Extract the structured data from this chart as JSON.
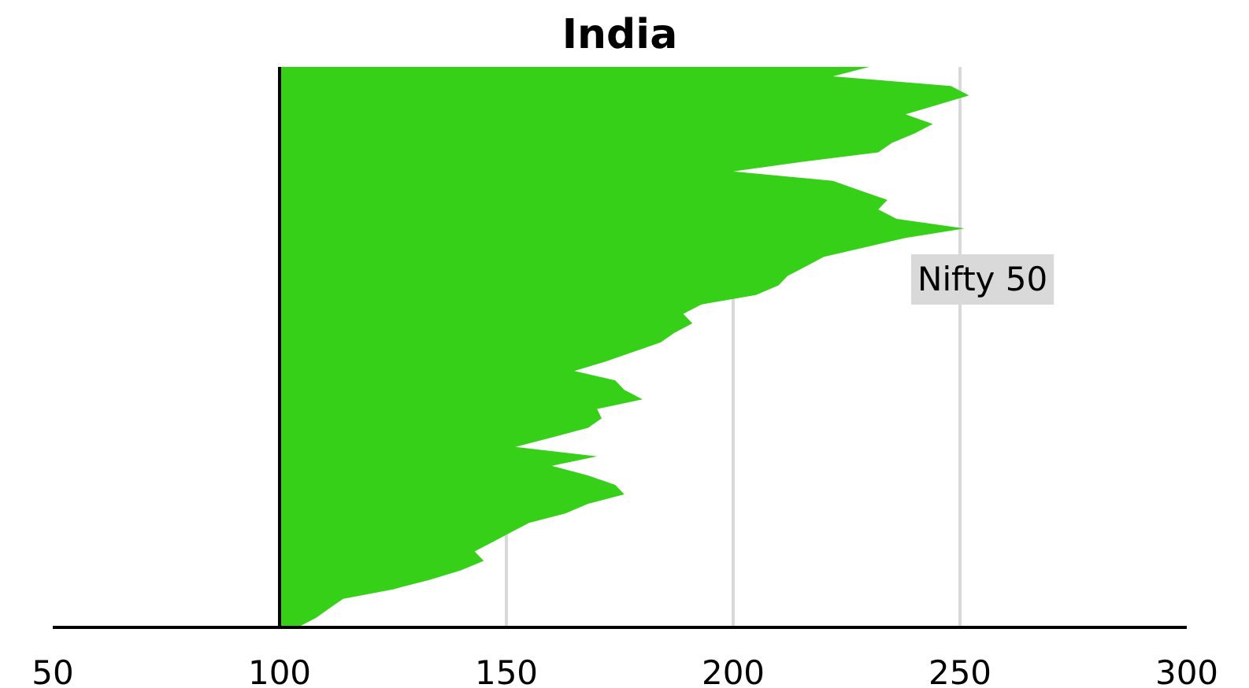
{
  "chart_data": {
    "type": "area",
    "orientation": "horizontal",
    "title": "India",
    "categories": [
      null,
      null,
      null,
      null,
      null,
      null,
      null,
      null,
      null,
      null,
      null,
      null,
      null,
      null,
      null,
      null,
      null,
      null,
      null,
      null,
      null,
      null,
      null,
      null,
      null,
      null,
      null,
      null,
      null,
      null,
      null,
      null,
      null,
      null,
      null,
      null,
      null,
      null,
      null,
      null,
      null,
      null,
      null,
      null,
      null,
      null,
      null,
      null,
      null,
      null,
      null,
      null,
      null,
      null,
      null,
      null,
      null,
      null,
      null,
      null
    ],
    "series": [
      {
        "name": "Nifty 50",
        "color": "#35d017",
        "values": [
          230,
          222,
          248,
          252,
          245,
          238,
          244,
          240,
          235,
          232,
          215,
          200,
          222,
          228,
          234,
          232,
          236,
          251,
          238,
          229,
          220,
          216,
          212,
          210,
          205,
          193,
          189,
          191,
          187,
          184,
          178,
          172,
          165,
          174,
          176,
          180,
          170,
          171,
          168,
          160,
          152,
          170,
          160,
          168,
          174,
          176,
          168,
          163,
          155,
          151,
          147,
          143,
          145,
          140,
          133,
          125,
          114,
          111,
          108,
          104
        ]
      }
    ],
    "xlim": [
      50,
      300
    ],
    "xticks": [
      50,
      100,
      150,
      200,
      250,
      300
    ],
    "grid": "x",
    "ref_lines": [
      {
        "axis": "x",
        "value": 100,
        "color": "#000000"
      }
    ]
  }
}
